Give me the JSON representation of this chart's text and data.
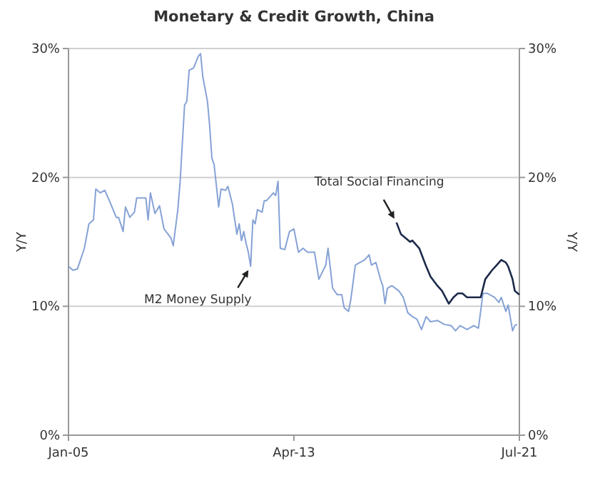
{
  "chart_data": {
    "type": "line",
    "title": "Monetary & Credit Growth, China",
    "ylabel": "Y/Y",
    "y2label": "Y/Y",
    "xlim": [
      "2005-01",
      "2021-07"
    ],
    "xticks": [
      {
        "value": "2005-01",
        "label": "Jan-05"
      },
      {
        "value": "2013-04",
        "label": "Apr-13"
      },
      {
        "value": "2021-07",
        "label": "Jul-21"
      }
    ],
    "ylim": [
      0,
      30
    ],
    "yticks": [
      {
        "value": 0,
        "label": "0%"
      },
      {
        "value": 10,
        "label": "10%"
      },
      {
        "value": 20,
        "label": "20%"
      },
      {
        "value": 30,
        "label": "30%"
      }
    ],
    "y2lim": [
      0,
      30
    ],
    "y2ticks": [
      {
        "value": 0,
        "label": "0%"
      },
      {
        "value": 10,
        "label": "10%"
      },
      {
        "value": 20,
        "label": "20%"
      },
      {
        "value": 30,
        "label": "30%"
      }
    ],
    "grid": "y",
    "series": [
      {
        "color": "#86a2d6",
        "x": [
          "2005-01",
          "2005-03",
          "2005-05",
          "2005-08",
          "2005-10",
          "2005-12",
          "2006-01",
          "2006-03",
          "2006-05",
          "2006-07",
          "2006-10",
          "2006-11",
          "2007-01",
          "2007-02",
          "2007-04",
          "2007-06",
          "2007-07",
          "2007-09",
          "2007-11",
          "2007-12",
          "2008-01",
          "2008-03",
          "2008-05",
          "2008-07",
          "2008-10",
          "2008-11",
          "2009-01",
          "2009-02",
          "2009-04",
          "2009-05",
          "2009-06",
          "2009-08",
          "2009-10",
          "2009-11",
          "2009-12",
          "2010-02",
          "2010-03",
          "2010-04",
          "2010-05",
          "2010-07",
          "2010-08",
          "2010-10",
          "2010-11",
          "2011-01",
          "2011-02",
          "2011-03",
          "2011-04",
          "2011-05",
          "2011-06",
          "2011-07",
          "2011-08",
          "2011-09",
          "2011-10",
          "2011-11",
          "2011-12",
          "2012-02",
          "2012-03",
          "2012-04",
          "2012-07",
          "2012-08",
          "2012-09",
          "2012-10",
          "2012-12",
          "2013-02",
          "2013-04",
          "2013-06",
          "2013-08",
          "2013-10",
          "2014-01",
          "2014-03",
          "2014-06",
          "2014-07",
          "2014-09",
          "2014-11",
          "2015-01",
          "2015-02",
          "2015-04",
          "2015-05",
          "2015-07",
          "2015-09",
          "2015-11",
          "2016-01",
          "2016-02",
          "2016-04",
          "2016-06",
          "2016-07",
          "2016-08",
          "2016-09",
          "2016-11",
          "2017-02",
          "2017-04",
          "2017-06",
          "2017-08",
          "2017-10",
          "2017-12",
          "2018-02",
          "2018-04",
          "2018-07",
          "2018-10",
          "2019-01",
          "2019-03",
          "2019-05",
          "2019-08",
          "2019-11",
          "2020-01",
          "2020-03",
          "2020-05",
          "2020-08",
          "2020-10",
          "2020-11",
          "2021-01",
          "2021-02",
          "2021-04",
          "2021-05",
          "2021-06"
        ],
        "values": [
          13.1,
          12.8,
          12.9,
          14.5,
          16.4,
          16.7,
          19.1,
          18.8,
          19,
          18.2,
          16.9,
          16.9,
          15.8,
          17.7,
          16.9,
          17.3,
          18.4,
          18.4,
          18.4,
          16.7,
          18.8,
          17.2,
          17.8,
          16,
          15.3,
          14.7,
          17.5,
          19.7,
          25.6,
          25.9,
          28.3,
          28.5,
          29.4,
          29.6,
          27.8,
          25.9,
          24.1,
          21.5,
          21,
          17.7,
          19.1,
          19,
          19.3,
          17.9,
          16.7,
          15.6,
          16.4,
          15.1,
          15.8,
          14.9,
          14.2,
          13.1,
          16.7,
          16.4,
          17.5,
          17.3,
          18.2,
          18.2,
          18.8,
          18.6,
          19.7,
          14.5,
          14.4,
          15.8,
          16,
          14.2,
          14.5,
          14.2,
          14.2,
          12.1,
          13.2,
          14.5,
          11.4,
          10.9,
          10.9,
          9.9,
          9.6,
          10.5,
          13.2,
          13.4,
          13.6,
          14,
          13.2,
          13.4,
          12.1,
          11.6,
          10.2,
          11.4,
          11.6,
          11.2,
          10.7,
          9.5,
          9.2,
          9,
          8.2,
          9.2,
          8.8,
          8.9,
          8.6,
          8.5,
          8.1,
          8.5,
          8.2,
          8.5,
          8.3,
          11,
          11,
          10.7,
          10.3,
          10.7,
          9.6,
          10.1,
          8.1,
          8.5,
          8.6
        ]
      },
      {
        "color": "#1c2a4a",
        "x": [
          "2017-01",
          "2017-03",
          "2017-05",
          "2017-07",
          "2017-08",
          "2017-11",
          "2018-02",
          "2018-04",
          "2018-07",
          "2018-09",
          "2018-12",
          "2019-02",
          "2019-04",
          "2019-06",
          "2019-08",
          "2019-11",
          "2020-02",
          "2020-04",
          "2020-07",
          "2020-09",
          "2020-11",
          "2021-01",
          "2021-02",
          "2021-04",
          "2021-05",
          "2021-07"
        ],
        "values": [
          16.5,
          15.6,
          15.3,
          15,
          15.1,
          14.5,
          13.1,
          12.3,
          11.6,
          11.2,
          10.2,
          10.7,
          11,
          11,
          10.7,
          10.7,
          10.7,
          12.1,
          12.8,
          13.2,
          13.6,
          13.4,
          13.1,
          12.1,
          11.2,
          10.9
        ]
      }
    ],
    "annotations": [
      {
        "text": "M2 Money Supply",
        "x": "2011-09",
        "y": 13.1
      },
      {
        "text": "Total Social Financing",
        "x": "2017-01",
        "y": 16.5
      }
    ]
  }
}
